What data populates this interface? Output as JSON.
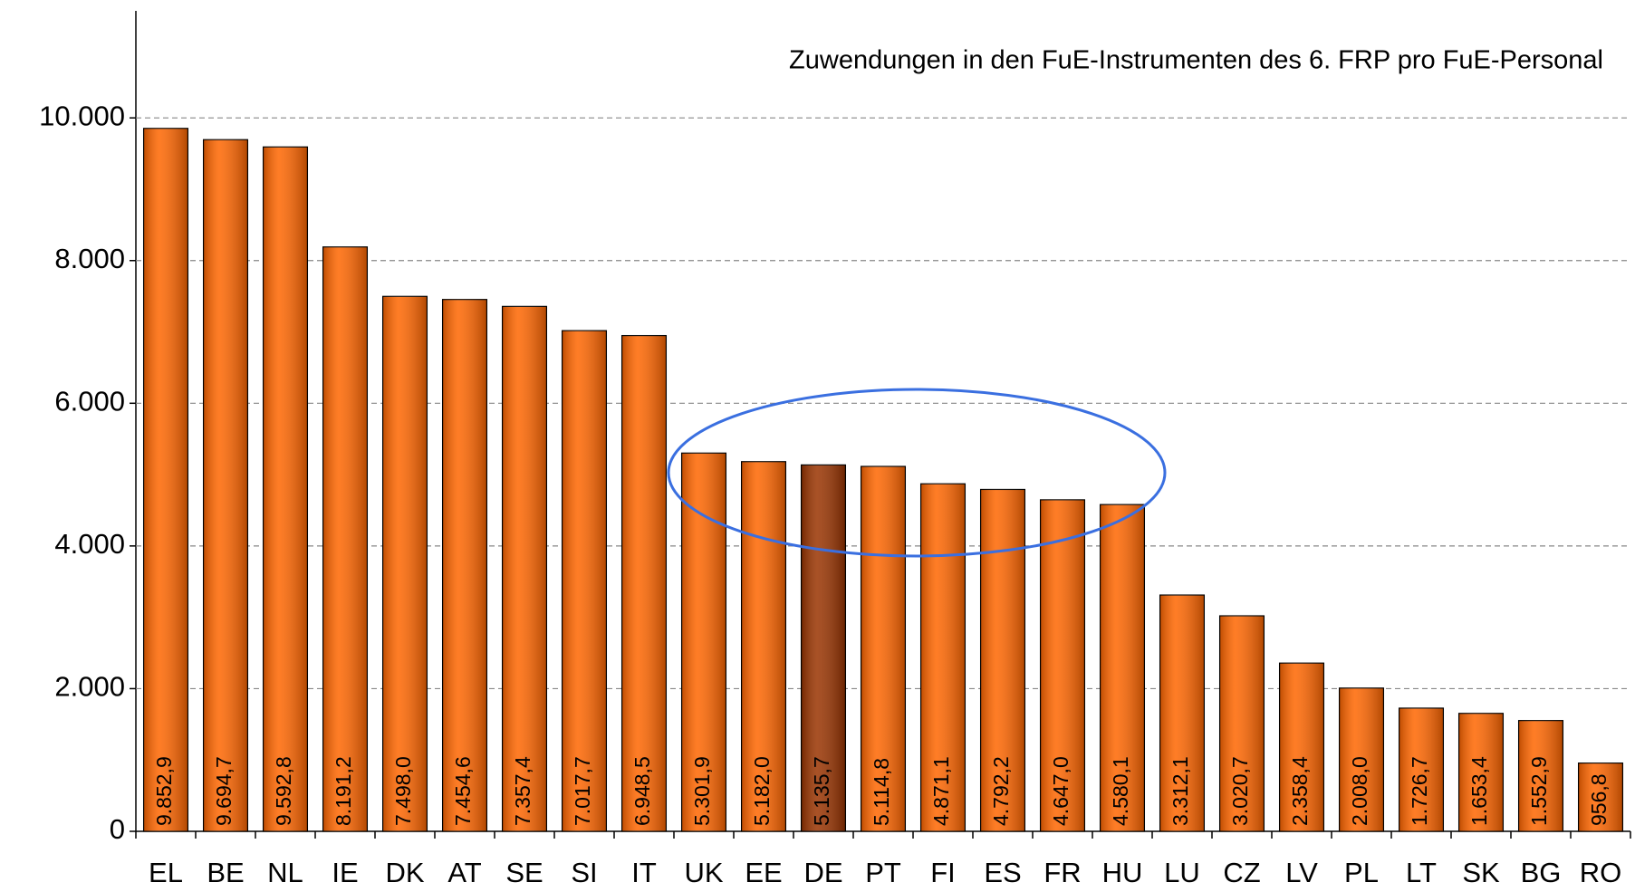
{
  "chart_data": {
    "type": "bar",
    "title": "Zuwendungen in den FuE-Instrumenten des 6. FRP pro FuE-Personal",
    "categories": [
      "EL",
      "BE",
      "NL",
      "IE",
      "DK",
      "AT",
      "SE",
      "SI",
      "IT",
      "UK",
      "EE",
      "DE",
      "PT",
      "FI",
      "ES",
      "FR",
      "HU",
      "LU",
      "CZ",
      "LV",
      "PL",
      "LT",
      "SK",
      "BG",
      "RO"
    ],
    "values": [
      9852.9,
      9694.7,
      9592.8,
      8191.2,
      7498.0,
      7454.6,
      7357.4,
      7017.7,
      6948.5,
      5301.9,
      5182.0,
      5135.7,
      5114.8,
      4871.1,
      4792.2,
      4647.0,
      4580.1,
      3312.1,
      3020.7,
      2358.4,
      2008.0,
      1726.7,
      1653.4,
      1552.9,
      956.8
    ],
    "value_labels": [
      "9.852,9",
      "9.694,7",
      "9.592,8",
      "8.191,2",
      "7.498,0",
      "7.454,6",
      "7.357,4",
      "7.017,7",
      "6.948,5",
      "5.301,9",
      "5.182,0",
      "5.135,7",
      "5.114,8",
      "4.871,1",
      "4.792,2",
      "4.647,0",
      "4.580,1",
      "3.312,1",
      "3.020,7",
      "2.358,4",
      "2.008,0",
      "1.726,7",
      "1.653,4",
      "1.552,9",
      "956,8"
    ],
    "colors": [
      "#ff6600",
      "#ff6600",
      "#ff6600",
      "#ff6600",
      "#ff6600",
      "#ff6600",
      "#ff6600",
      "#ff6600",
      "#ff6600",
      "#ff6600",
      "#ff6600",
      "#993300",
      "#ff6600",
      "#ff6600",
      "#ff6600",
      "#ff6600",
      "#ff6600",
      "#ff6600",
      "#ff6600",
      "#ff6600",
      "#ff6600",
      "#ff6600",
      "#ff6600",
      "#ff6600",
      "#ff6600"
    ],
    "ylim": [
      0,
      11500
    ],
    "yticks": [
      0,
      {
        "value": 2000,
        "label": "2.000"
      },
      {
        "value": 4000,
        "label": "4.000"
      },
      {
        "value": 6000,
        "label": "6.000"
      },
      {
        "value": 8000,
        "label": "8.000"
      },
      {
        "value": 10000,
        "label": "10.000"
      }
    ],
    "grid": true
  }
}
